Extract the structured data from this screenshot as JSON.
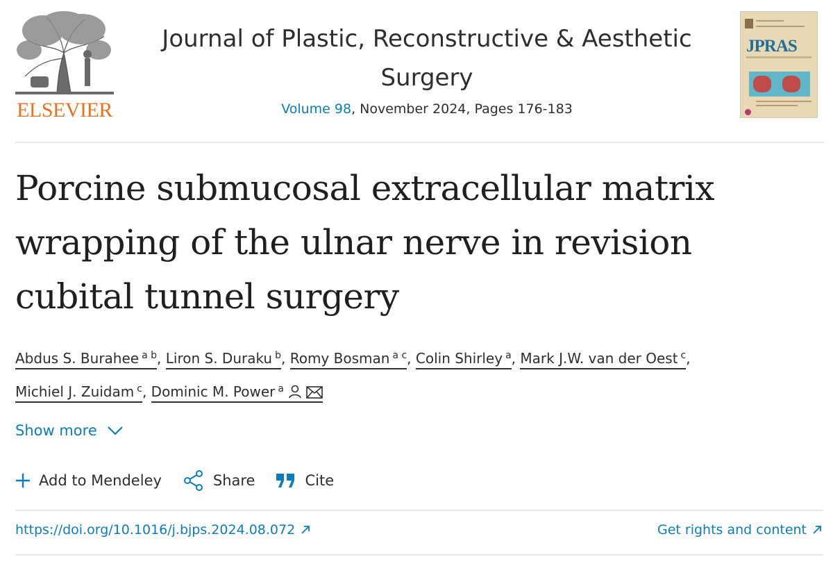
{
  "publisher": {
    "name": "ELSEVIER"
  },
  "journal": {
    "title": "Journal of Plastic, Reconstructive & Aesthetic Surgery",
    "volume_link": "Volume 98",
    "issue_rest": ", November 2024, Pages 176-183",
    "cover_title": "JPRAS"
  },
  "article": {
    "title": "Porcine submucosal extracellular matrix wrapping of the ulnar nerve in revision cubital tunnel surgery",
    "authors": [
      {
        "name": "Abdus S. Burahee",
        "aff": "a b"
      },
      {
        "name": "Liron S. Duraku",
        "aff": "b"
      },
      {
        "name": "Romy Bosman",
        "aff": "a c"
      },
      {
        "name": "Colin Shirley",
        "aff": "a"
      },
      {
        "name": "Mark J.W. van der Oest",
        "aff": "c"
      },
      {
        "name": "Michiel J. Zuidam",
        "aff": "c"
      },
      {
        "name": "Dominic M. Power",
        "aff": "a",
        "icons": [
          "person-icon",
          "envelope-icon"
        ]
      }
    ]
  },
  "show_more": {
    "label": "Show more",
    "icon": "chevron-down-icon"
  },
  "actions": [
    {
      "label": "Add to Mendeley",
      "icon": "plus-icon"
    },
    {
      "label": "Share",
      "icon": "share-icon"
    },
    {
      "label": "Cite",
      "icon": "quote-icon"
    }
  ],
  "links": {
    "doi": "https://doi.org/10.1016/j.bjps.2024.08.072",
    "rights": "Get rights and content",
    "icon": "external-link-icon"
  },
  "colors": {
    "link": "#0c7dbb",
    "publisher_orange": "#e9711c",
    "text": "#1f1f1f"
  }
}
